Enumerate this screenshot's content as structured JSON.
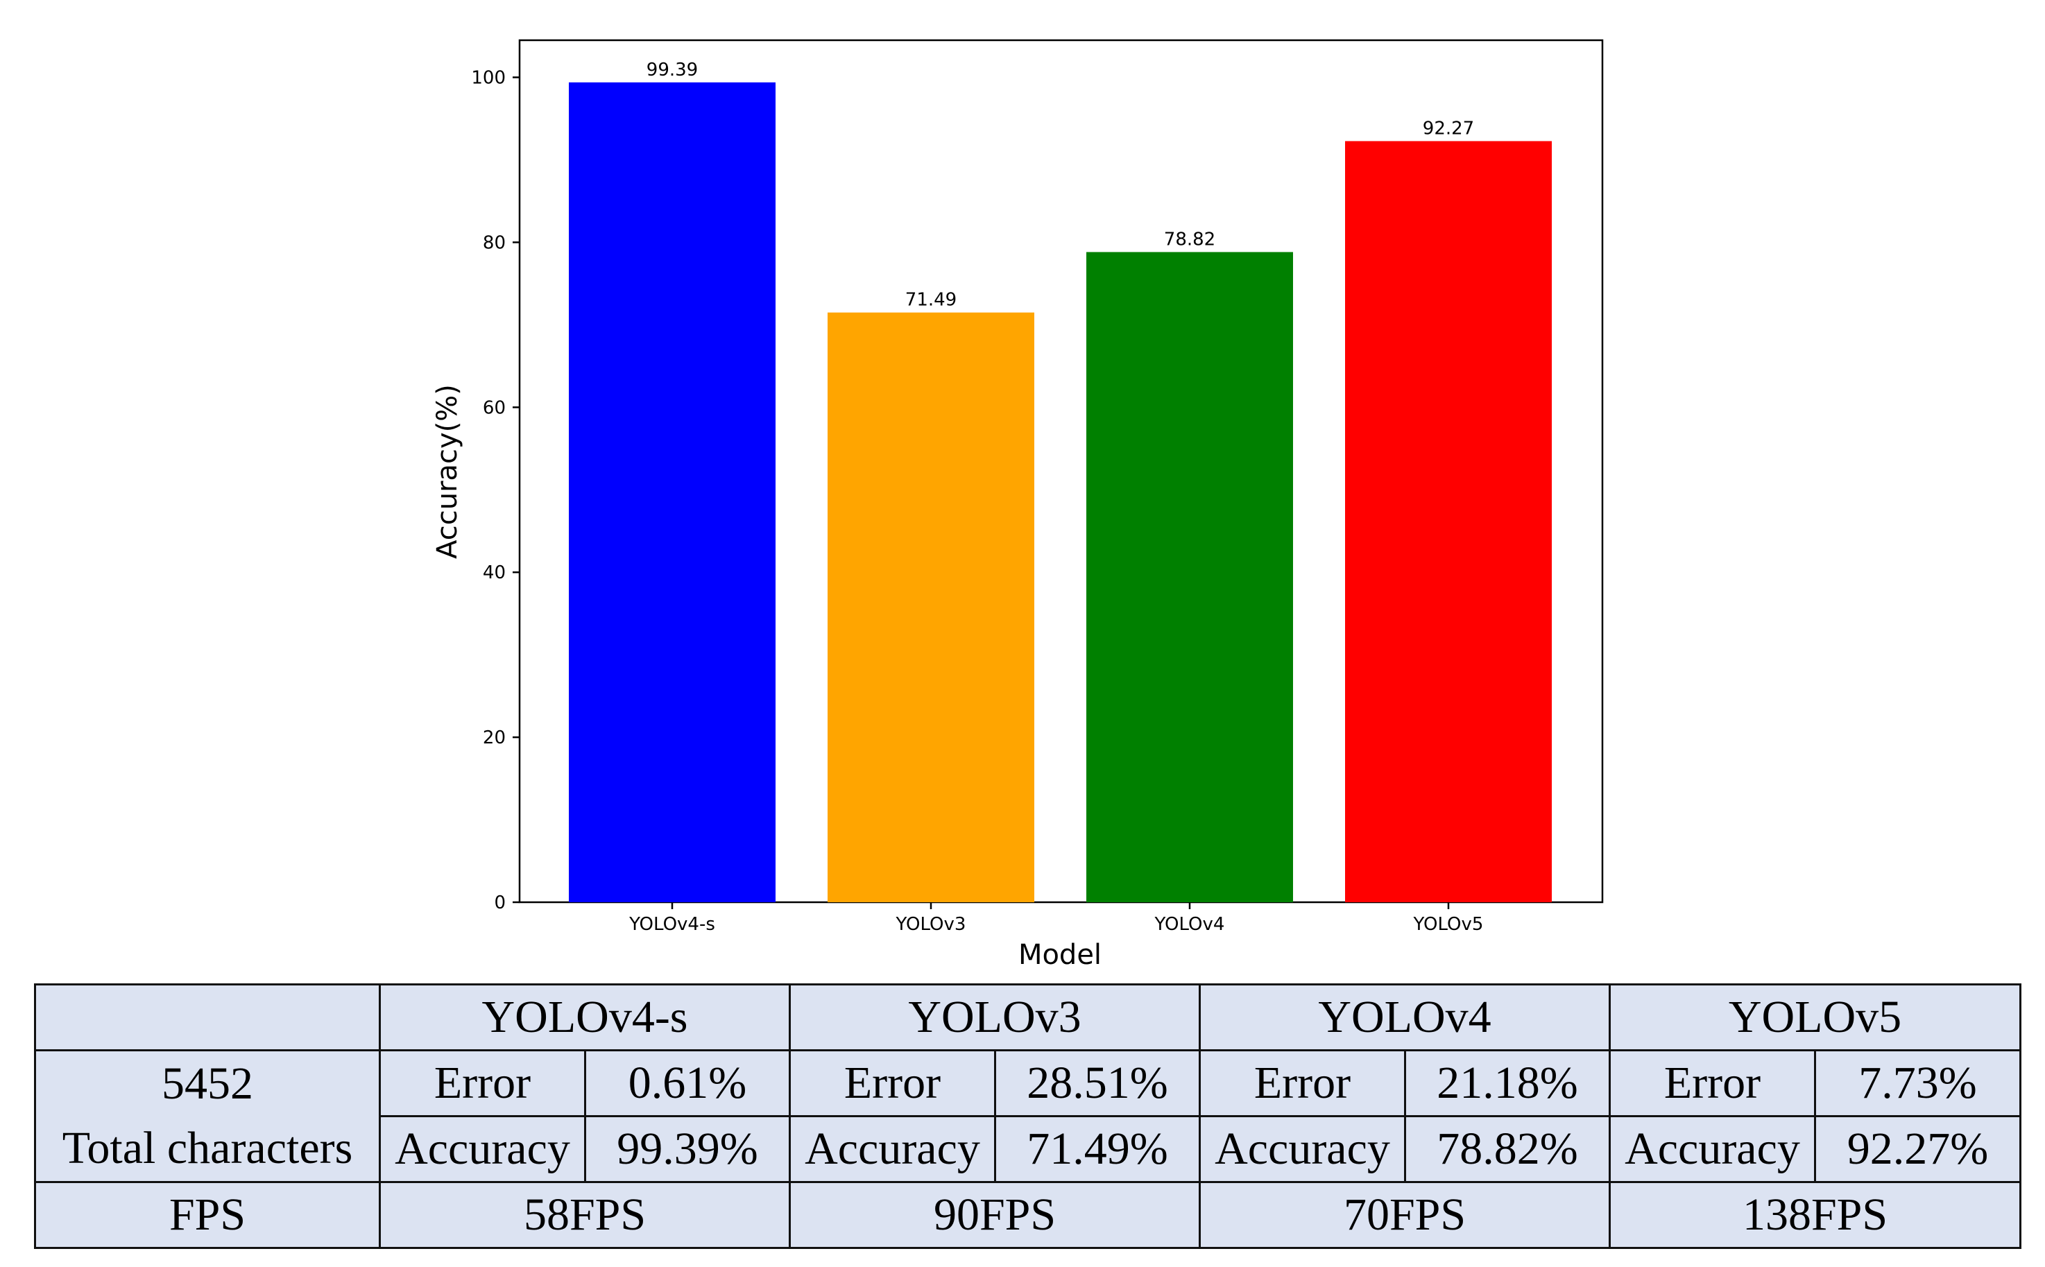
{
  "chart_data": {
    "type": "bar",
    "categories": [
      "YOLOv4-s",
      "YOLOv3",
      "YOLOv4",
      "YOLOv5"
    ],
    "values": [
      99.39,
      71.49,
      78.82,
      92.27
    ],
    "value_labels": [
      "99.39",
      "71.49",
      "78.82",
      "92.27"
    ],
    "bar_colors": [
      "#0000ff",
      "#ffa500",
      "#008000",
      "#ff0000"
    ],
    "xlabel": "Model",
    "ylabel": "Accuracy(%)",
    "ylim": [
      0,
      104.5
    ],
    "yticks": [
      0,
      20,
      40,
      60,
      80,
      100
    ],
    "grid": false,
    "title": ""
  },
  "table": {
    "header": [
      "",
      "YOLOv4-s",
      "YOLOv3",
      "YOLOv4",
      "YOLOv5"
    ],
    "row_label_top": "5452",
    "row_label_bottom": "Total characters",
    "error_label": "Error",
    "accuracy_label": "Accuracy",
    "errors": [
      "0.61%",
      "28.51%",
      "21.18%",
      "7.73%"
    ],
    "accuracies": [
      "99.39%",
      "71.49%",
      "78.82%",
      "92.27%"
    ],
    "fps_label": "FPS",
    "fps": [
      "58FPS",
      "90FPS",
      "70FPS",
      "138FPS"
    ]
  }
}
